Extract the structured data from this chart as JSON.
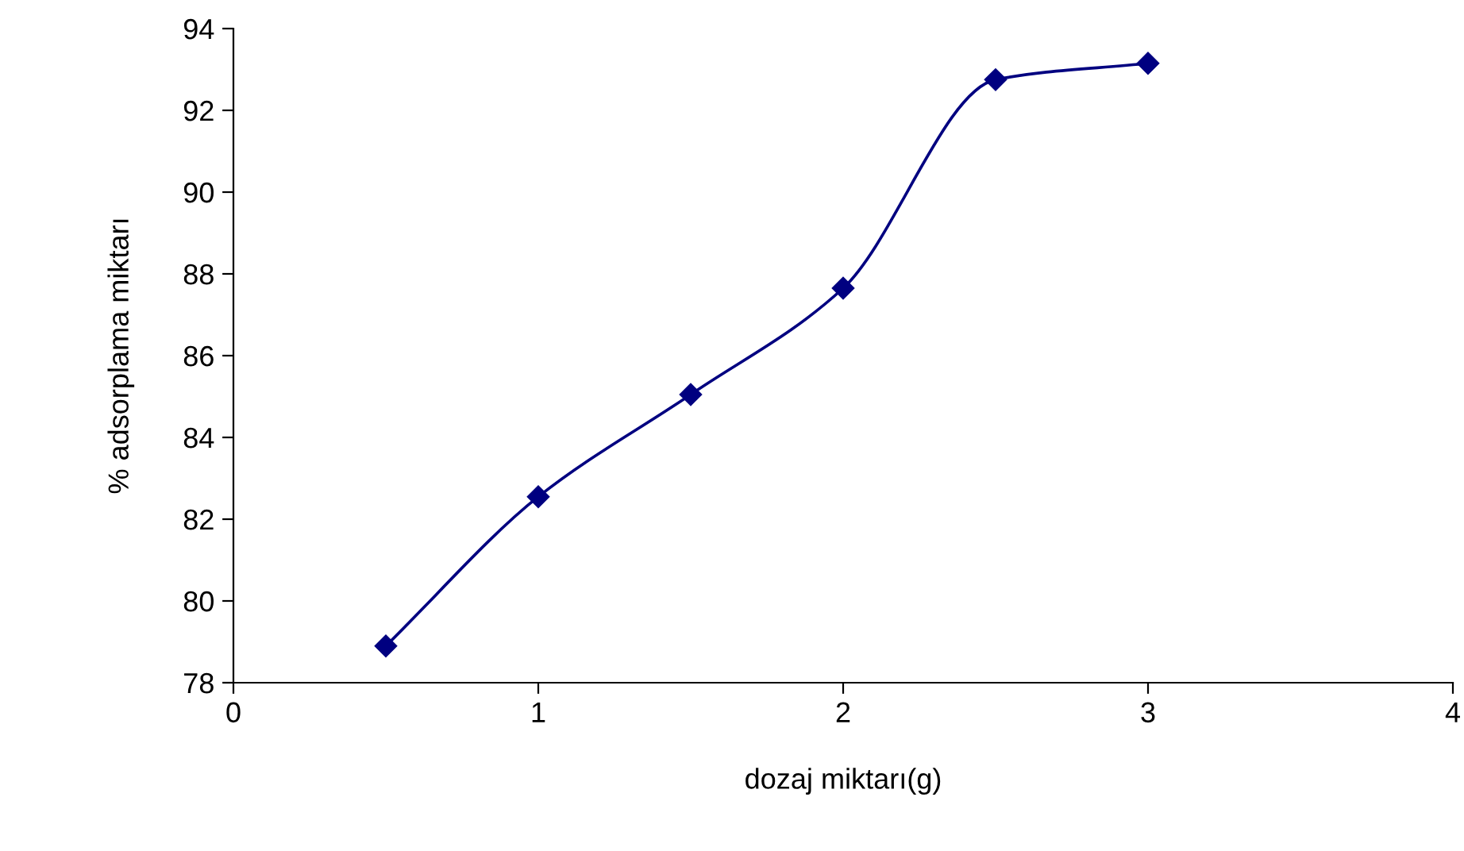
{
  "chart_data": {
    "type": "line",
    "xlabel": "dozaj miktarı(g)",
    "ylabel": "% adsorplama miktarı",
    "x": [
      0.5,
      1,
      1.5,
      2,
      2.5,
      3
    ],
    "series": [
      {
        "color": "#000080",
        "values": [
          78.9,
          82.55,
          85.05,
          87.65,
          92.75,
          93.15
        ]
      }
    ],
    "xlim": [
      0,
      4
    ],
    "xticks": [
      0,
      1,
      2,
      3,
      4
    ],
    "ylim": [
      78,
      94
    ],
    "yticks": [
      78,
      80,
      82,
      84,
      86,
      88,
      90,
      92,
      94
    ],
    "grid": false,
    "legend": false,
    "marker": "diamond",
    "line_style": "solid"
  }
}
